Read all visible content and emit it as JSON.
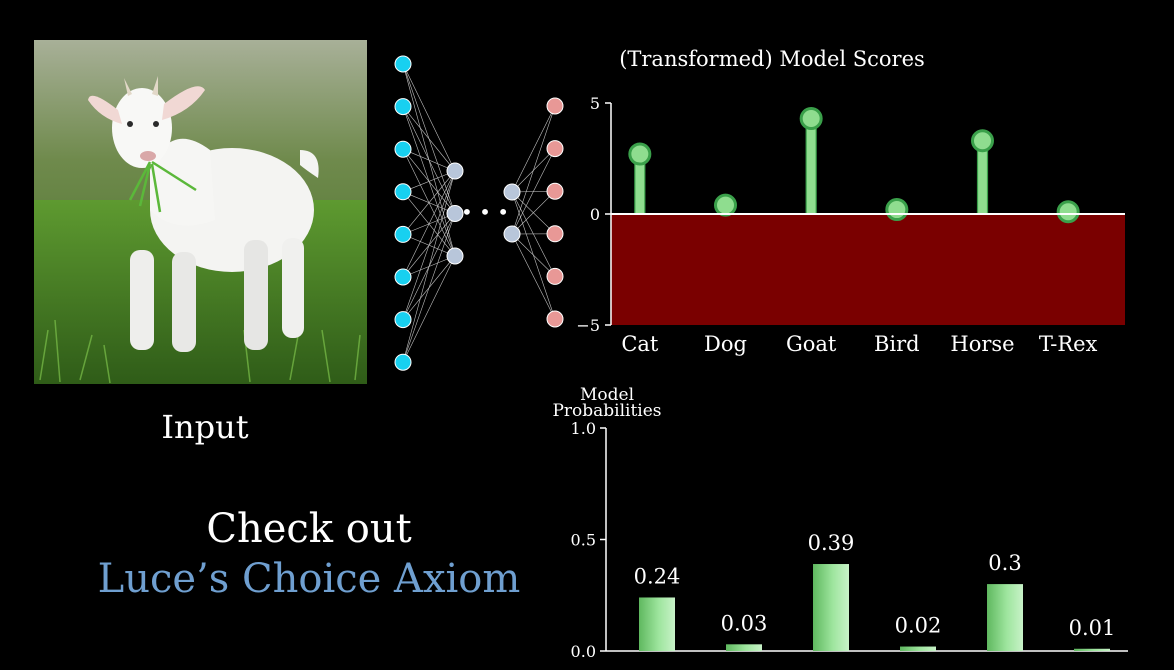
{
  "input_label": "Input",
  "callout": {
    "line1": "Check out",
    "line2": "Luce’s Choice Axiom",
    "line2_color": "#6f9fd0"
  },
  "network": {
    "input_nodes": 8,
    "hidden_nodes_1": 3,
    "hidden_nodes_2": 2,
    "output_nodes": 6,
    "ellipsis": "• • •",
    "colors": {
      "input": "#18d0f0",
      "hidden": "#b8c6da",
      "output": "#e89896"
    }
  },
  "chart_data": [
    {
      "type": "lollipop",
      "title": "(Transformed) Model Scores",
      "categories": [
        "Cat",
        "Dog",
        "Goat",
        "Bird",
        "Horse",
        "T-Rex"
      ],
      "values": [
        2.7,
        0.4,
        4.3,
        0.2,
        3.3,
        0.1
      ],
      "ylim": [
        -5,
        5
      ],
      "yticks": [
        {
          "value": 5,
          "label": "5"
        },
        {
          "value": 0,
          "label": "0"
        },
        {
          "value": -5,
          "label": "−5"
        }
      ],
      "negative_region_color": "#7a0000",
      "mark_color": "#8fdd8f"
    },
    {
      "type": "bar",
      "ylabel_line1": "Model",
      "ylabel_line2": "Probabilities",
      "categories": [
        "Cat",
        "Dog",
        "Goat",
        "Bird",
        "Horse",
        "T-Rex"
      ],
      "values": [
        0.24,
        0.03,
        0.39,
        0.02,
        0.3,
        0.01
      ],
      "value_labels": [
        "0.24",
        "0.03",
        "0.39",
        "0.02",
        "0.3",
        "0.01"
      ],
      "ylim": [
        0,
        1
      ],
      "yticks": [
        {
          "value": 1.0,
          "label": "1.0"
        },
        {
          "value": 0.5,
          "label": "0.5"
        },
        {
          "value": 0.0,
          "label": "0.0"
        }
      ],
      "bar_color": "#8fdd8f"
    }
  ]
}
